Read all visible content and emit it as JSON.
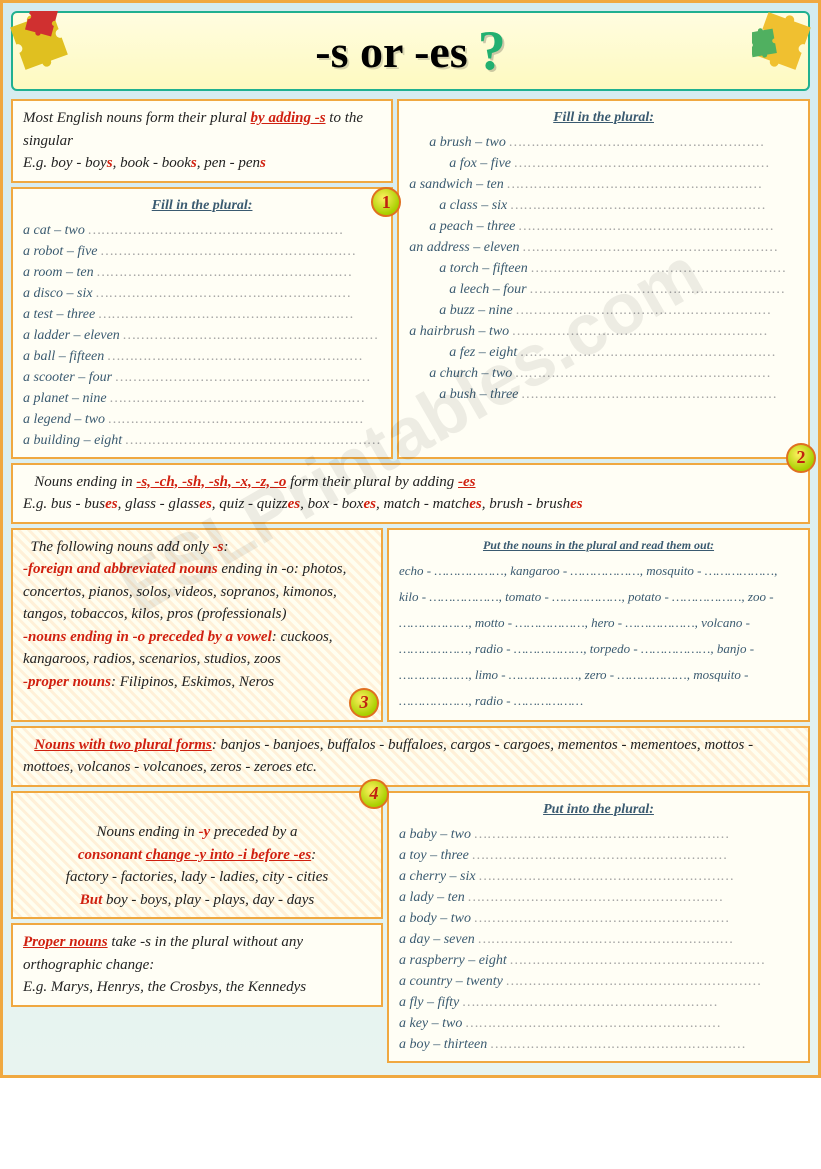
{
  "title": {
    "main": "-s or -es",
    "q": "?"
  },
  "rule1": {
    "line1a": "Most English nouns form their ",
    "line1b": "plural ",
    "line1c": "by adding -s",
    "line1d": " to the singular",
    "line2a": "E.g. boy - boy",
    "line2b": "s",
    "line2c": ", book - book",
    "line2d": "s",
    "line2e": ", pen - pen",
    "line2f": "s"
  },
  "ex1": {
    "title": "Fill in the plural:",
    "items": [
      "a cat – two",
      "a robot – five",
      "a room – ten",
      "a disco – six",
      "a test – three",
      "a ladder – eleven",
      "a ball – fifteen",
      "a scooter – four",
      "a planet – nine",
      "a legend – two",
      "a building – eight"
    ]
  },
  "ex2": {
    "title": "Fill in the plural:",
    "items": [
      "a brush – two",
      "a fox – five",
      "a sandwich – ten",
      "a class – six",
      "a peach – three",
      "an address – eleven",
      "a torch – fifteen",
      "a leech – four",
      "a buzz – nine",
      "a hairbrush – two",
      "a fez – eight",
      "a church – two",
      "a bush – three"
    ],
    "indents": [
      20,
      40,
      0,
      30,
      20,
      0,
      30,
      40,
      30,
      0,
      40,
      20,
      30
    ]
  },
  "rule2": {
    "a": "Nouns ending in ",
    "b": "-s, -ch, -sh, -sh, -x, -z, -o",
    "c": " form their plural by adding ",
    "d": "-es",
    "e": "E.g. bus - bus",
    "f": "es",
    "g": ", glass - glass",
    "h": "es",
    "i": ", quiz - quizz",
    "j": "es",
    "k": ", box - box",
    "l": "es",
    "m": ", match - match",
    "n": "es",
    "o": ", brush - brush",
    "p": "es"
  },
  "rule3": {
    "t1": "The following nouns add only ",
    "t1b": "-s",
    "t1c": ":",
    "l1": "-foreign and abbreviated nouns",
    "l1b": " ending in -o: photos, concertos, pianos, solos, videos, sopranos, kimonos, tangos, tobaccos, kilos, pros (professionals)",
    "l2": "-nouns ending in -o preceded by a vowel",
    "l2b": ": cuckoos, kangaroos, radios, scenarios, studios, zoos",
    "l3": "-proper nouns",
    "l3b": ": Filipinos, Eskimos, Neros"
  },
  "ex3": {
    "title": "Put the nouns in the plural and read them out:",
    "flow": "echo - ………………, kangaroo - ………………, mosquito - ………………, kilo - ………………, tomato - ………………, potato - ………………, zoo - ………………, motto - ………………, hero - ………………, volcano - ………………, radio - ………………, torpedo - ………………, banjo - ………………, limo - ………………, zero - ………………, mosquito - ………………, radio - ………………"
  },
  "rule4": {
    "a": "Nouns with two plural forms",
    "b": ": banjos - banjoes, buffalos - buffaloes, cargos - cargoes, mementos - mementoes, mottos - mottoes, volcanos - volcanoes, zeros - zeroes etc."
  },
  "rule5": {
    "a": "Nouns ending in ",
    "b": "-y",
    "c": " preceded by a ",
    "d": "consonant ",
    "e": "change -y into -i before -es",
    "f": ":",
    "g": "factory - factories, lady - ladies, city - cities",
    "h": "But",
    "i": " boy - boys, play - plays, day - days"
  },
  "rule6": {
    "a": "Proper nouns",
    "b": " take -s in the plural without any orthographic change:",
    "c": "E.g. Marys, Henrys, the Crosbys, the Kennedys"
  },
  "ex4": {
    "title": "Put into the plural:",
    "items": [
      "a baby – two",
      "a toy – three",
      "a cherry – six",
      "a lady – ten",
      "a body – two",
      "a day – seven",
      "a raspberry – eight",
      "a country – twenty",
      "a fly – fifty",
      "a key – two",
      "a boy – thirteen"
    ]
  },
  "badges": {
    "n1": "1",
    "n2": "2",
    "n3": "3",
    "n4": "4"
  },
  "watermark": "ESLPrintables.com"
}
